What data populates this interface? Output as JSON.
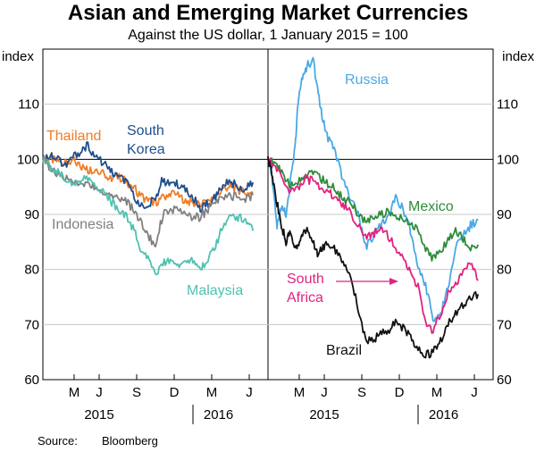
{
  "title": "Asian and Emerging Market Currencies",
  "subtitle": "Against the US dollar, 1 January 2015 = 100",
  "source_label": "Source:",
  "source_value": "Bloomberg",
  "chart_data": [
    {
      "type": "line",
      "ylabel_left": "index",
      "ylabel_right": "index",
      "ylim": [
        60,
        120
      ],
      "yticks": [
        60,
        70,
        80,
        90,
        100,
        110
      ],
      "xlim": [
        2015.0,
        2016.5
      ],
      "month_ticks": [
        {
          "label": "M",
          "x": 2015.208
        },
        {
          "label": "J",
          "x": 2015.375
        },
        {
          "label": "S",
          "x": 2015.625
        },
        {
          "label": "D",
          "x": 2015.875
        },
        {
          "label": "M",
          "x": 2016.125
        },
        {
          "label": "J",
          "x": 2016.375
        }
      ],
      "year_labels": [
        {
          "label": "2015",
          "x": 2015.375
        },
        {
          "label": "2016",
          "x": 2016.17
        }
      ],
      "reference_line": 100,
      "series": [
        {
          "name": "Thailand",
          "color": "#f07c26",
          "x": [
            2015.0,
            2015.05,
            2015.1,
            2015.15,
            2015.2,
            2015.25,
            2015.3,
            2015.35,
            2015.4,
            2015.45,
            2015.5,
            2015.55,
            2015.6,
            2015.65,
            2015.7,
            2015.75,
            2015.8,
            2015.85,
            2015.9,
            2015.95,
            2016.0,
            2016.05,
            2016.1,
            2016.15,
            2016.2,
            2016.25,
            2016.3,
            2016.35,
            2016.4
          ],
          "y": [
            100,
            100,
            99.6,
            99.2,
            99.8,
            98.8,
            98,
            98.3,
            97.7,
            96.5,
            96.8,
            96.2,
            95,
            93.5,
            92.5,
            92.2,
            93,
            94,
            93.3,
            92.6,
            92,
            91.8,
            92.5,
            93,
            94.5,
            95.3,
            94.5,
            93.8,
            94
          ]
        },
        {
          "name": "South Korea",
          "color": "#1f4e8c",
          "x": [
            2015.0,
            2015.05,
            2015.1,
            2015.15,
            2015.2,
            2015.25,
            2015.3,
            2015.35,
            2015.4,
            2015.45,
            2015.5,
            2015.55,
            2015.6,
            2015.65,
            2015.7,
            2015.75,
            2015.8,
            2015.85,
            2015.9,
            2015.95,
            2016.0,
            2016.05,
            2016.1,
            2016.15,
            2016.2,
            2016.25,
            2016.3,
            2016.35,
            2016.4
          ],
          "y": [
            100,
            100.8,
            100.2,
            98.8,
            100.4,
            101.5,
            102.5,
            100.5,
            99.5,
            97.8,
            96.8,
            96,
            93.5,
            92,
            91.5,
            93,
            96.5,
            95,
            95.5,
            94.5,
            93,
            91,
            92,
            93,
            95.5,
            96,
            95,
            94.5,
            95.8
          ]
        },
        {
          "name": "Indonesia",
          "color": "#808080",
          "x": [
            2015.0,
            2015.05,
            2015.1,
            2015.15,
            2015.2,
            2015.25,
            2015.3,
            2015.35,
            2015.4,
            2015.45,
            2015.5,
            2015.55,
            2015.6,
            2015.65,
            2015.7,
            2015.75,
            2015.8,
            2015.85,
            2015.9,
            2015.95,
            2016.0,
            2016.05,
            2016.1,
            2016.15,
            2016.2,
            2016.25,
            2016.3,
            2016.35,
            2016.4
          ],
          "y": [
            100,
            98.5,
            97,
            96.5,
            96,
            95,
            96,
            94.5,
            94,
            93.5,
            93,
            92.5,
            91,
            89,
            86,
            84.5,
            90,
            91,
            90.5,
            90,
            89.5,
            89.5,
            91,
            92,
            93,
            93.5,
            93,
            92.8,
            93.5
          ]
        },
        {
          "name": "Malaysia",
          "color": "#4fc1b0",
          "x": [
            2015.0,
            2015.05,
            2015.1,
            2015.15,
            2015.2,
            2015.25,
            2015.3,
            2015.35,
            2015.4,
            2015.45,
            2015.5,
            2015.55,
            2015.6,
            2015.65,
            2015.7,
            2015.75,
            2015.8,
            2015.85,
            2015.9,
            2015.95,
            2016.0,
            2016.05,
            2016.1,
            2016.15,
            2016.2,
            2016.25,
            2016.3,
            2016.35,
            2016.4
          ],
          "y": [
            100,
            98.5,
            97.5,
            96.5,
            95.5,
            96,
            96.5,
            95,
            94,
            92.5,
            91,
            90,
            87.5,
            84,
            82,
            79,
            81,
            82,
            80.5,
            81,
            81.5,
            80,
            82,
            84,
            88,
            90,
            89.5,
            89,
            87
          ]
        },
        {
          "name": "Russia",
          "color": "#49a9e4",
          "x": [
            2015.0,
            2015.03,
            2015.06,
            2015.09,
            2015.12,
            2015.15,
            2015.18,
            2015.2,
            2015.23,
            2015.26,
            2015.3,
            2015.33,
            2015.36,
            2015.4,
            2015.45,
            2015.5,
            2015.55,
            2015.6,
            2015.65,
            2015.7,
            2015.75,
            2015.8,
            2015.85,
            2015.9,
            2015.95,
            2016.0,
            2016.05,
            2016.1,
            2016.15,
            2016.2,
            2016.25,
            2016.3,
            2016.35,
            2016.4
          ],
          "y": [
            100,
            96,
            88,
            92,
            90,
            96,
            102,
            110,
            115,
            117,
            118,
            113,
            108,
            104,
            101,
            96,
            93,
            90,
            84,
            86,
            88,
            90,
            93,
            91,
            87,
            80,
            77,
            71,
            72,
            77,
            84,
            86,
            88,
            89
          ]
        },
        {
          "name": "Mexico",
          "color": "#2e8b3a",
          "x": [
            2015.0,
            2015.05,
            2015.1,
            2015.15,
            2015.2,
            2015.25,
            2015.3,
            2015.35,
            2015.4,
            2015.45,
            2015.5,
            2015.55,
            2015.6,
            2015.65,
            2015.7,
            2015.75,
            2015.8,
            2015.85,
            2015.9,
            2015.95,
            2016.0,
            2016.05,
            2016.1,
            2016.15,
            2016.2,
            2016.25,
            2016.3,
            2016.35,
            2016.4
          ],
          "y": [
            100,
            99,
            97.5,
            95,
            96,
            97,
            97.5,
            96.5,
            95.5,
            94.5,
            93,
            92,
            90,
            88.5,
            89.5,
            90,
            90.5,
            89.5,
            89,
            88.5,
            87,
            84,
            82,
            83,
            85.5,
            87,
            85.5,
            84,
            84.5
          ]
        },
        {
          "name": "South Africa",
          "color": "#e0237f",
          "x": [
            2015.0,
            2015.05,
            2015.1,
            2015.15,
            2015.2,
            2015.25,
            2015.3,
            2015.35,
            2015.4,
            2015.45,
            2015.5,
            2015.55,
            2015.6,
            2015.65,
            2015.7,
            2015.75,
            2015.8,
            2015.85,
            2015.9,
            2015.95,
            2016.0,
            2016.05,
            2016.1,
            2016.15,
            2016.2,
            2016.25,
            2016.3,
            2016.35,
            2016.4
          ],
          "y": [
            100,
            98.5,
            96,
            94,
            95,
            96.5,
            96,
            95,
            94,
            93,
            91.5,
            90.5,
            88,
            86,
            86.5,
            87.5,
            86,
            84,
            82.5,
            79,
            77,
            70,
            69,
            72,
            75.5,
            77,
            80,
            81,
            78
          ]
        },
        {
          "name": "Brazil",
          "color": "#111111",
          "x": [
            2015.0,
            2015.03,
            2015.06,
            2015.09,
            2015.12,
            2015.15,
            2015.18,
            2015.2,
            2015.23,
            2015.26,
            2015.3,
            2015.33,
            2015.36,
            2015.4,
            2015.45,
            2015.5,
            2015.55,
            2015.6,
            2015.65,
            2015.7,
            2015.75,
            2015.8,
            2015.85,
            2015.9,
            2015.95,
            2016.0,
            2016.05,
            2016.1,
            2016.15,
            2016.2,
            2016.25,
            2016.3,
            2016.35,
            2016.4
          ],
          "y": [
            100,
            97,
            92,
            88,
            85,
            87,
            84,
            84.5,
            86,
            88,
            85,
            82.5,
            84,
            85,
            83.5,
            81,
            78.5,
            73,
            67.5,
            67,
            69,
            68.5,
            70.5,
            69.5,
            67.5,
            66,
            64.5,
            65,
            67,
            70,
            72,
            73.5,
            75,
            75.5
          ]
        }
      ],
      "series_labels": [
        {
          "text": "Thailand",
          "series": 0
        },
        {
          "text": "South",
          "series": 1
        },
        {
          "text": "Korea",
          "series": 1
        },
        {
          "text": "Indonesia",
          "series": 2
        },
        {
          "text": "Malaysia",
          "series": 3
        },
        {
          "text": "Russia",
          "series": 4
        },
        {
          "text": "Mexico",
          "series": 5
        },
        {
          "text": "South",
          "series": 6
        },
        {
          "text": "Africa",
          "series": 6
        },
        {
          "text": "Brazil",
          "series": 7
        }
      ]
    }
  ]
}
